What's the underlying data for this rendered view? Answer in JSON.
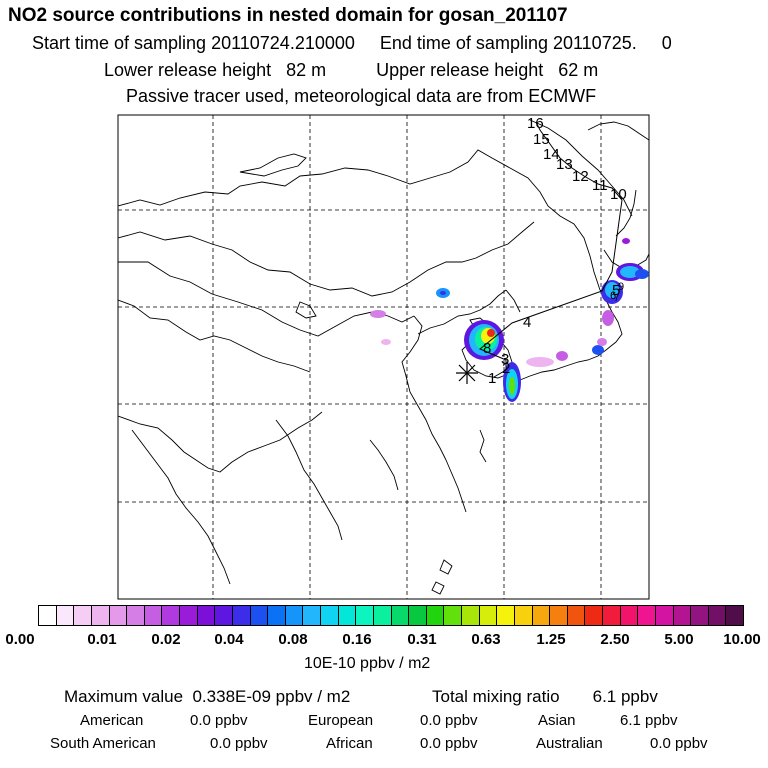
{
  "header": {
    "title": "NO2 source contributions in nested domain for gosan_201107",
    "sampling": "Start time of sampling 20110724.210000     End time of sampling 20110725.     0",
    "heights": "Lower release height   82 m          Upper release height   62 m",
    "info": "Passive tracer used, meteorological data are from ECMWF"
  },
  "map": {
    "trajectory_labels": [
      "1",
      "2",
      "3",
      "4",
      "5",
      "6",
      "7",
      "8",
      "9",
      "10",
      "11",
      "12",
      "13",
      "14",
      "15",
      "16"
    ],
    "station_marker": "receptor-star"
  },
  "colorbar": {
    "colors": [
      "#ffffff",
      "#fbe7fb",
      "#f5cdf5",
      "#eeb4f0",
      "#e59ae9",
      "#d57ee6",
      "#c65ee3",
      "#b03adf",
      "#9a1bd8",
      "#7c10d8",
      "#5e16e0",
      "#3c2de8",
      "#1d50f0",
      "#0b72f5",
      "#1595fa",
      "#22b6fc",
      "#10d2f2",
      "#04e7d8",
      "#0cf5c0",
      "#0af09e",
      "#09d86b",
      "#07c83e",
      "#22d40d",
      "#61e00b",
      "#a8e60a",
      "#d6ec0b",
      "#f5f20c",
      "#f7d10d",
      "#f7a80e",
      "#f57f0f",
      "#f1540f",
      "#ef2a14",
      "#f11c3c",
      "#f2146a",
      "#ef1591",
      "#d314a3",
      "#b21492",
      "#931381",
      "#711066",
      "#4f0d4a"
    ],
    "ticks": [
      "0.00",
      "0.01",
      "0.02",
      "0.04",
      "0.08",
      "0.16",
      "0.31",
      "0.63",
      "1.25",
      "2.50",
      "5.00",
      "10.00"
    ],
    "units": "10E-10 ppbv / m2"
  },
  "summary": {
    "maximum": "Maximum value  0.338E-09 ppbv / m2",
    "total": "Total mixing ratio       6.1 ppbv",
    "regions": [
      {
        "name": "American",
        "value": "0.0 ppbv"
      },
      {
        "name": "European",
        "value": "0.0 ppbv"
      },
      {
        "name": "Asian",
        "value": "6.1 ppbv"
      },
      {
        "name": "South American",
        "value": "0.0 ppbv"
      },
      {
        "name": "African",
        "value": "0.0 ppbv"
      },
      {
        "name": "Australian",
        "value": "0.0 ppbv"
      }
    ]
  }
}
